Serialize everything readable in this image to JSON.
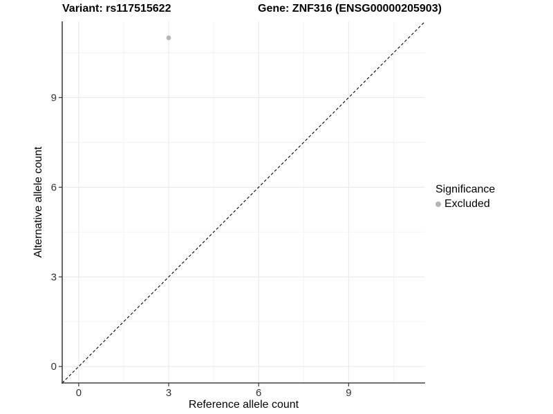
{
  "titles": {
    "variant": "Variant: rs117515622",
    "gene": "Gene: ZNF316 (ENSG00000205903)"
  },
  "chart_data": {
    "type": "scatter",
    "xlabel": "Reference allele count",
    "ylabel": "Alternative allele count",
    "xlim": [
      -0.55,
      11.55
    ],
    "ylim": [
      -0.55,
      11.55
    ],
    "x_major_ticks": [
      0,
      3,
      6,
      9
    ],
    "y_major_ticks": [
      0,
      3,
      6,
      9
    ],
    "x_minor_ticks": [
      1.5,
      4.5,
      7.5,
      10.5
    ],
    "y_minor_ticks": [
      1.5,
      4.5,
      7.5,
      10.5
    ],
    "grid": true,
    "legend_position": "right",
    "points": [
      {
        "x": 3,
        "y": 11,
        "series": "Excluded"
      }
    ],
    "reference_line": {
      "type": "identity",
      "slope": 1,
      "intercept": 0,
      "style": "dashed"
    }
  },
  "legend": {
    "title": "Significance",
    "items": [
      {
        "label": "Excluded",
        "color": "#b5b5b5",
        "marker": "circle"
      }
    ]
  },
  "colors": {
    "background": "#ffffff",
    "grid_major": "#e7e7e7",
    "grid_minor": "#f3f3f3",
    "axis_line": "#404040",
    "tick_mark": "#333333",
    "tick_label": "#333333",
    "point": "#b5b5b5",
    "reference_line": "#000000",
    "title_text": "#000000"
  }
}
